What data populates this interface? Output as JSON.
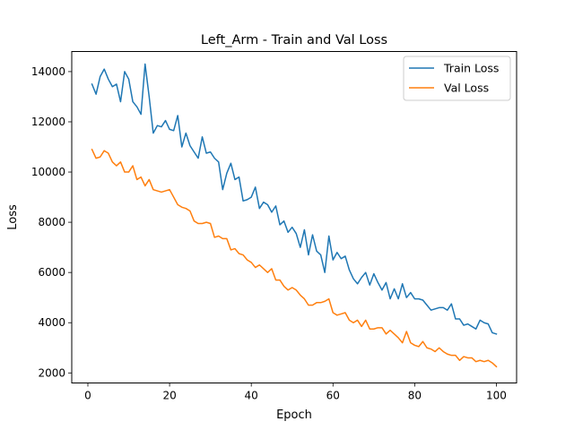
{
  "chart_data": {
    "type": "line",
    "title": "Left_Arm - Train and Val Loss",
    "xlabel": "Epoch",
    "ylabel": "Loss",
    "xlim": [
      -3.95,
      104.95
    ],
    "ylim": [
      1600,
      14800
    ],
    "xticks": [
      0,
      20,
      40,
      60,
      80,
      100
    ],
    "yticks": [
      2000,
      4000,
      6000,
      8000,
      10000,
      12000,
      14000
    ],
    "grid": false,
    "legend_position": "top-right",
    "x": [
      1,
      2,
      3,
      4,
      5,
      6,
      7,
      8,
      9,
      10,
      11,
      12,
      13,
      14,
      15,
      16,
      17,
      18,
      19,
      20,
      21,
      22,
      23,
      24,
      25,
      26,
      27,
      28,
      29,
      30,
      31,
      32,
      33,
      34,
      35,
      36,
      37,
      38,
      39,
      40,
      41,
      42,
      43,
      44,
      45,
      46,
      47,
      48,
      49,
      50,
      51,
      52,
      53,
      54,
      55,
      56,
      57,
      58,
      59,
      60,
      61,
      62,
      63,
      64,
      65,
      66,
      67,
      68,
      69,
      70,
      71,
      72,
      73,
      74,
      75,
      76,
      77,
      78,
      79,
      80,
      81,
      82,
      83,
      84,
      85,
      86,
      87,
      88,
      89,
      90,
      91,
      92,
      93,
      94,
      95,
      96,
      97,
      98,
      99,
      100
    ],
    "series": [
      {
        "name": "Train Loss",
        "color": "#1f77b4",
        "values": [
          13500,
          13100,
          13800,
          14100,
          13700,
          13400,
          13500,
          12800,
          14000,
          13700,
          12800,
          12600,
          12300,
          14300,
          13000,
          11550,
          11850,
          11800,
          12050,
          11700,
          11650,
          12250,
          11000,
          11550,
          11050,
          10800,
          10550,
          11400,
          10750,
          10800,
          10550,
          10400,
          9300,
          9950,
          10350,
          9700,
          9800,
          8850,
          8900,
          9000,
          9400,
          8550,
          8800,
          8700,
          8400,
          8650,
          7900,
          8050,
          7600,
          7800,
          7550,
          7000,
          7700,
          6700,
          7500,
          6850,
          6700,
          6000,
          7450,
          6500,
          6800,
          6550,
          6650,
          6100,
          5750,
          5550,
          5800,
          6000,
          5500,
          5950,
          5600,
          5300,
          5600,
          4950,
          5350,
          4950,
          5550,
          5000,
          5200,
          4950,
          4950,
          4900,
          4700,
          4500,
          4550,
          4600,
          4600,
          4500,
          4750,
          4150,
          4150,
          3900,
          3950,
          3850,
          3750,
          4100,
          4000,
          3950,
          3600,
          3550
        ]
      },
      {
        "name": "Val Loss",
        "color": "#ff7f0e",
        "values": [
          10900,
          10550,
          10600,
          10850,
          10750,
          10400,
          10250,
          10400,
          10000,
          10000,
          10250,
          9700,
          9800,
          9450,
          9700,
          9300,
          9250,
          9200,
          9250,
          9300,
          9000,
          8700,
          8600,
          8550,
          8450,
          8050,
          7950,
          7950,
          8000,
          7950,
          7400,
          7450,
          7350,
          7350,
          6900,
          6950,
          6750,
          6700,
          6500,
          6400,
          6200,
          6300,
          6150,
          6000,
          6150,
          5700,
          5700,
          5450,
          5300,
          5400,
          5300,
          5100,
          4950,
          4700,
          4700,
          4800,
          4800,
          4850,
          4950,
          4400,
          4300,
          4350,
          4400,
          4100,
          4000,
          4100,
          3850,
          4100,
          3750,
          3750,
          3800,
          3800,
          3550,
          3700,
          3550,
          3400,
          3200,
          3650,
          3200,
          3100,
          3050,
          3250,
          3000,
          2950,
          2850,
          3000,
          2850,
          2750,
          2700,
          2700,
          2500,
          2650,
          2600,
          2600,
          2450,
          2500,
          2450,
          2500,
          2400,
          2250
        ]
      }
    ]
  }
}
